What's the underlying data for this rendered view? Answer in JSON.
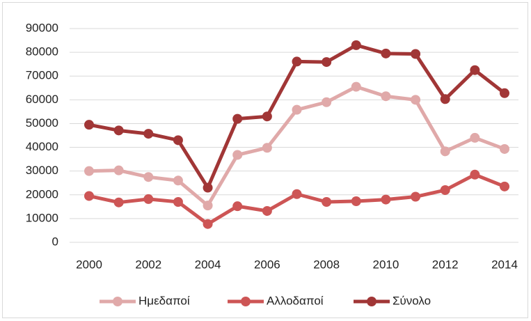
{
  "chart_data": {
    "type": "line",
    "x": [
      2000,
      2001,
      2002,
      2003,
      2004,
      2005,
      2006,
      2007,
      2008,
      2009,
      2010,
      2011,
      2012,
      2013,
      2014
    ],
    "series": [
      {
        "name": "Ημεδαποί",
        "color": "#e0a9a9",
        "values": [
          30000,
          30300,
          27500,
          26000,
          15500,
          36800,
          39800,
          55800,
          59000,
          65500,
          61500,
          60000,
          38300,
          44000,
          39300
        ]
      },
      {
        "name": "Αλλοδαποί",
        "color": "#cd5555",
        "values": [
          19500,
          16800,
          18200,
          17000,
          7700,
          15200,
          13200,
          20300,
          17000,
          17300,
          18000,
          19200,
          22000,
          28500,
          23500
        ]
      },
      {
        "name": "Σύνολο",
        "color": "#a13636",
        "values": [
          49500,
          47100,
          45700,
          43000,
          23000,
          52000,
          53000,
          76100,
          75900,
          83000,
          79500,
          79300,
          60300,
          72500,
          62800
        ]
      }
    ],
    "xlim": [
      2000,
      2014
    ],
    "xticks": [
      2000,
      2002,
      2004,
      2006,
      2008,
      2010,
      2012,
      2014
    ],
    "ylim": [
      0,
      90000
    ],
    "yticks": [
      0,
      10000,
      20000,
      30000,
      40000,
      50000,
      60000,
      70000,
      80000,
      90000
    ],
    "grid": true,
    "legend": "bottom"
  }
}
